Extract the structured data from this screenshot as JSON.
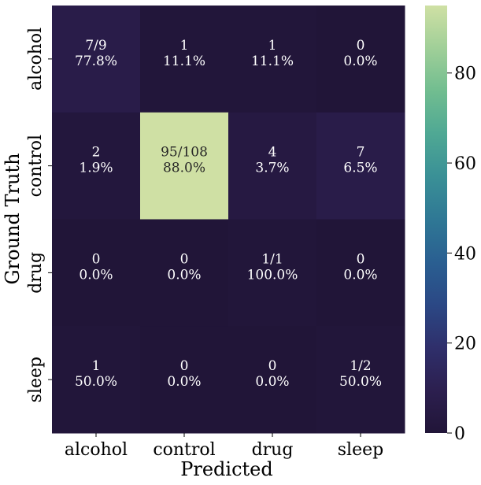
{
  "chart_data": {
    "type": "heatmap",
    "title": "",
    "xlabel": "Predicted",
    "ylabel": "Ground Truth",
    "x_categories": [
      "alcohol",
      "control",
      "drug",
      "sleep"
    ],
    "y_categories": [
      "alcohol",
      "control",
      "drug",
      "sleep"
    ],
    "values": [
      [
        7,
        1,
        1,
        0
      ],
      [
        2,
        95,
        4,
        7
      ],
      [
        0,
        0,
        1,
        0
      ],
      [
        1,
        0,
        0,
        1
      ]
    ],
    "cell_labels": [
      [
        [
          "7/9",
          "77.8%"
        ],
        [
          "1",
          "11.1%"
        ],
        [
          "1",
          "11.1%"
        ],
        [
          "0",
          "0.0%"
        ]
      ],
      [
        [
          "2",
          "1.9%"
        ],
        [
          "95/108",
          "88.0%"
        ],
        [
          "4",
          "3.7%"
        ],
        [
          "7",
          "6.5%"
        ]
      ],
      [
        [
          "0",
          "0.0%"
        ],
        [
          "0",
          "0.0%"
        ],
        [
          "1/1",
          "100.0%"
        ],
        [
          "0",
          "0.0%"
        ]
      ],
      [
        [
          "1",
          "50.0%"
        ],
        [
          "0",
          "0.0%"
        ],
        [
          "0",
          "0.0%"
        ],
        [
          "1/2",
          "50.0%"
        ]
      ]
    ],
    "colorbar": {
      "colormap": "crest_r",
      "range": [
        0,
        95
      ],
      "ticks": [
        0,
        20,
        40,
        60,
        80
      ],
      "tick_labels": [
        "0",
        "20",
        "40",
        "60",
        "80"
      ]
    },
    "colors": {
      "low": "#211538",
      "high": "#cfe0a4"
    }
  }
}
